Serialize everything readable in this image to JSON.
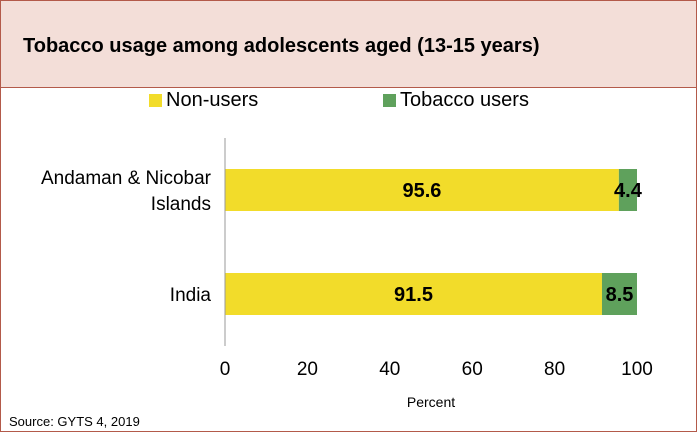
{
  "chart_data": {
    "type": "bar",
    "orientation": "horizontal",
    "stacked": true,
    "title": "Tobacco usage among adolescents aged (13-15 years)",
    "categories": [
      "Andaman & Nicobar Islands",
      "India"
    ],
    "category_lines": [
      [
        "Andaman & Nicobar",
        "Islands"
      ],
      [
        "India"
      ]
    ],
    "series": [
      {
        "name": "Non-users",
        "values": [
          95.6,
          91.5
        ],
        "labels": [
          "95.6",
          "91.5"
        ],
        "color": "#f2dc2a"
      },
      {
        "name": "Tobacco users",
        "values": [
          4.4,
          8.5
        ],
        "labels": [
          "4.4",
          "8.5"
        ],
        "color": "#5fa15c"
      }
    ],
    "xlabel": "Percent",
    "ylabel": "",
    "xlim": [
      0,
      100
    ],
    "xticks": [
      0,
      20,
      40,
      60,
      80,
      100
    ],
    "legend_position": "top",
    "grid": false
  },
  "source": "Source: GYTS 4, 2019"
}
